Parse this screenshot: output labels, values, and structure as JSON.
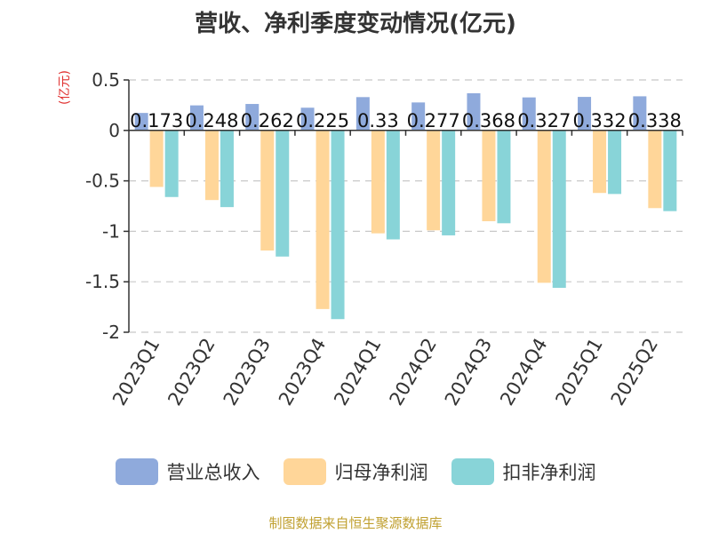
{
  "chart_data": {
    "type": "bar",
    "title": "营收、净利季度变动情况(亿元)",
    "unit_label": "(亿元)",
    "categories": [
      "2023Q1",
      "2023Q2",
      "2023Q3",
      "2023Q4",
      "2024Q1",
      "2024Q2",
      "2024Q3",
      "2024Q4",
      "2025Q1",
      "2025Q2"
    ],
    "series": [
      {
        "name": "营业总收入",
        "color": "#8faadc",
        "values": [
          0.173,
          0.248,
          0.262,
          0.225,
          0.33,
          0.277,
          0.368,
          0.327,
          0.332,
          0.338
        ],
        "labels": [
          "0.173",
          "0.248",
          "0.262",
          "0.225",
          "0.33",
          "0.277",
          "0.368",
          "0.327",
          "0.332",
          "0.338"
        ]
      },
      {
        "name": "归母净利润",
        "color": "#ffd699",
        "values": [
          -0.56,
          -0.69,
          -1.19,
          -1.77,
          -1.02,
          -0.99,
          -0.9,
          -1.51,
          -0.62,
          -0.77
        ]
      },
      {
        "name": "扣非净利润",
        "color": "#88d4d8",
        "values": [
          -0.66,
          -0.76,
          -1.25,
          -1.87,
          -1.08,
          -1.04,
          -0.92,
          -1.56,
          -0.63,
          -0.8
        ]
      }
    ],
    "ylim": [
      -2,
      0.5
    ],
    "yticks": [
      0.5,
      0,
      -0.5,
      -1,
      -1.5,
      -2
    ],
    "ytick_labels": [
      "0.5",
      "0",
      "-0.5",
      "-1",
      "-1.5",
      "-2"
    ],
    "grid": true,
    "legend": "bottom"
  },
  "source": "制图数据来自恒生聚源数据库"
}
